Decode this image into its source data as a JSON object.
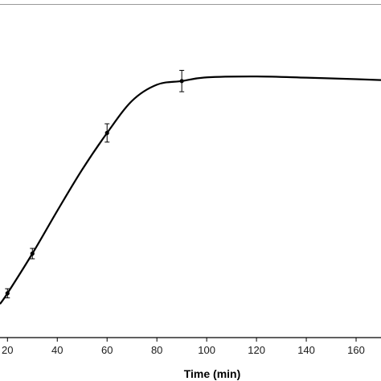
{
  "chart_data": {
    "type": "line",
    "title": "",
    "xlabel": "Time (min)",
    "ylabel": "",
    "xlim": [
      17,
      170
    ],
    "ylim": [
      0,
      100
    ],
    "x_ticks": [
      20,
      40,
      60,
      80,
      100,
      120,
      140,
      160
    ],
    "x_tick_labels": [
      "20",
      "40",
      "60",
      "80",
      "100",
      "120",
      "140",
      "160"
    ],
    "grid": false,
    "legend": "none",
    "line_color": "#000000",
    "series": [
      {
        "points": [
          {
            "x": 20,
            "y": 14.5,
            "err": 1.5
          },
          {
            "x": 30,
            "y": 27.5,
            "err": 1.7
          },
          {
            "x": 60,
            "y": 67.0,
            "err": 3.0
          },
          {
            "x": 90,
            "y": 84.0,
            "err": 3.5
          }
        ],
        "curve": [
          {
            "x": 17,
            "y": 11.0
          },
          {
            "x": 20,
            "y": 14.5
          },
          {
            "x": 30,
            "y": 27.5
          },
          {
            "x": 40,
            "y": 41.5
          },
          {
            "x": 50,
            "y": 55.0
          },
          {
            "x": 60,
            "y": 67.0
          },
          {
            "x": 70,
            "y": 77.5
          },
          {
            "x": 80,
            "y": 82.8
          },
          {
            "x": 90,
            "y": 84.0
          },
          {
            "x": 100,
            "y": 85.2
          },
          {
            "x": 120,
            "y": 85.5
          },
          {
            "x": 140,
            "y": 85.1
          },
          {
            "x": 160,
            "y": 84.6
          },
          {
            "x": 170,
            "y": 84.3
          }
        ]
      }
    ]
  }
}
